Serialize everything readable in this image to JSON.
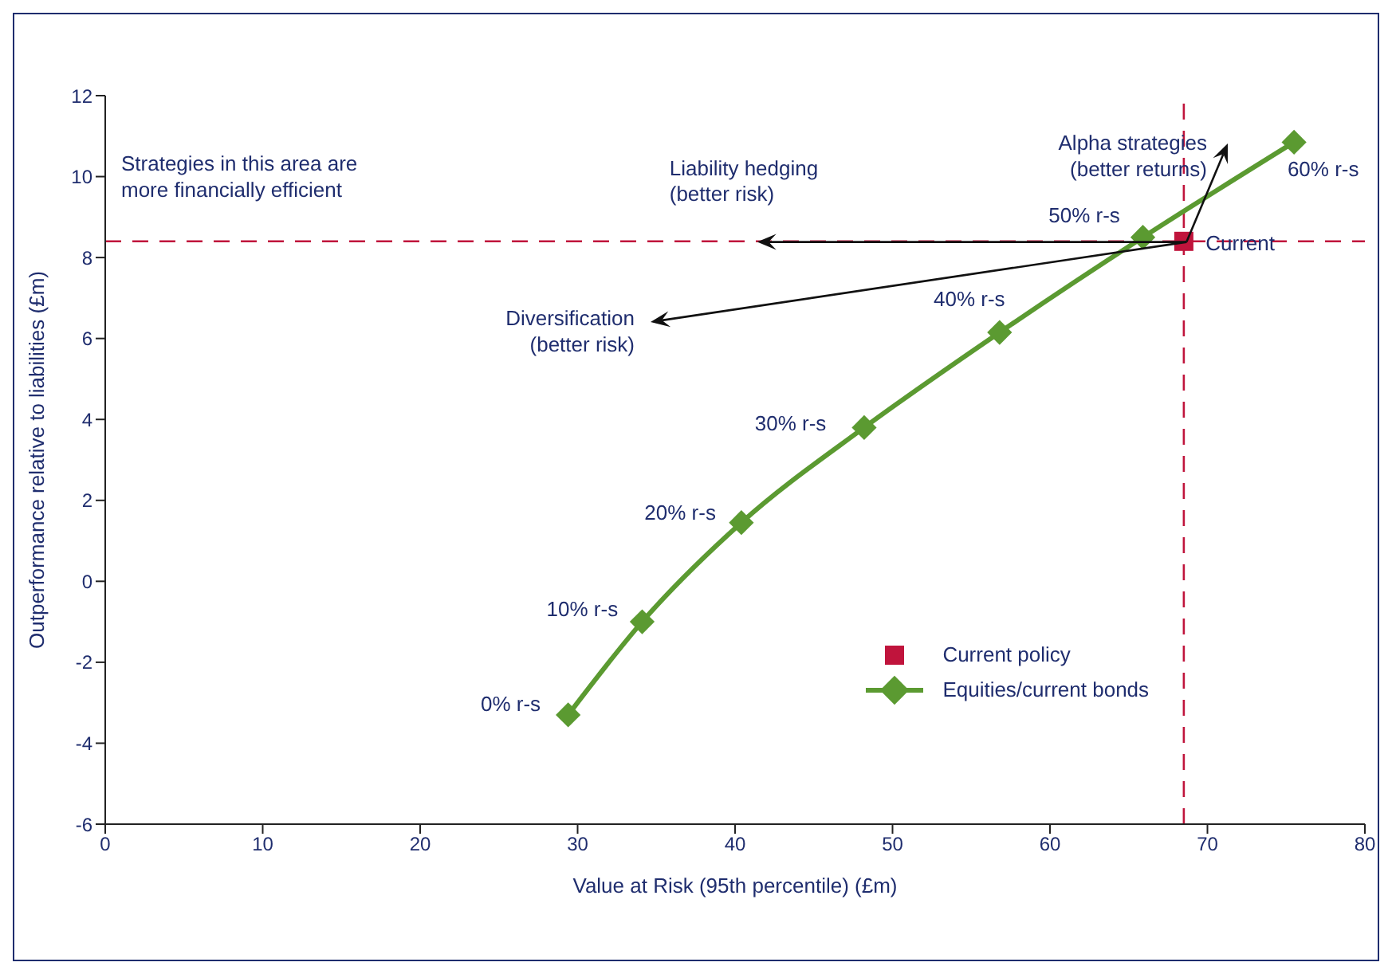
{
  "chart_data": {
    "type": "line",
    "xlabel": "Value at Risk (95th percentile) (£m)",
    "ylabel": "Outperformance relative to liabilities (£m)",
    "xlim": [
      0,
      80
    ],
    "xticks": [
      0,
      10,
      20,
      30,
      40,
      50,
      60,
      70,
      80
    ],
    "ylim": [
      -6,
      12
    ],
    "yticks": [
      -6,
      -4,
      -2,
      0,
      2,
      4,
      6,
      8,
      10,
      12
    ],
    "grid": false,
    "legend": "bottom right",
    "series": [
      {
        "name": "Current policy",
        "type": "scatter",
        "marker": "square",
        "color": "#c0143c",
        "x": [
          68.5
        ],
        "values": [
          8.4
        ]
      },
      {
        "name": "Equities/current bonds",
        "marker": "diamond",
        "color": "#5b9a31",
        "x": [
          29.4,
          34.1,
          40.4,
          48.2,
          56.8,
          65.9,
          75.5
        ],
        "values": [
          -3.3,
          -1.0,
          1.45,
          3.8,
          6.15,
          8.5,
          10.85
        ]
      }
    ],
    "ref_lines": [
      {
        "axis": "y",
        "value": 8.4,
        "color": "#c0143c",
        "line_style": "dashed"
      },
      {
        "axis": "x",
        "value": 68.5,
        "color": "#c0143c",
        "line_style": "dashed"
      }
    ],
    "annotations": [
      "Strategies in this area are\nmore financially efficient",
      {
        "text": "Liability hedging\n(better risk)",
        "x": 41.3,
        "y": 8.4
      },
      "Diversification\n(better risk)",
      {
        "text": "Alpha strategies\n(better returns)",
        "x": 68.5,
        "y": 8.4
      },
      {
        "text": "0% r-s",
        "x": 29.4,
        "y": -3.3
      },
      {
        "text": "10% r-s",
        "x": 34.1,
        "y": -1.0
      },
      {
        "text": "20% r-s",
        "x": 40.4,
        "y": 1.45
      },
      {
        "text": "30% r-s",
        "x": 48.2,
        "y": 3.8
      },
      {
        "text": "40% r-s",
        "x": 56.8,
        "y": 6.15
      },
      {
        "text": "50% r-s",
        "x": 65.9,
        "y": 8.5
      },
      {
        "text": "60% r-s",
        "x": 75.5,
        "y": 10.85
      },
      {
        "text": "Current",
        "x": 68.5,
        "y": 8.4
      }
    ]
  }
}
